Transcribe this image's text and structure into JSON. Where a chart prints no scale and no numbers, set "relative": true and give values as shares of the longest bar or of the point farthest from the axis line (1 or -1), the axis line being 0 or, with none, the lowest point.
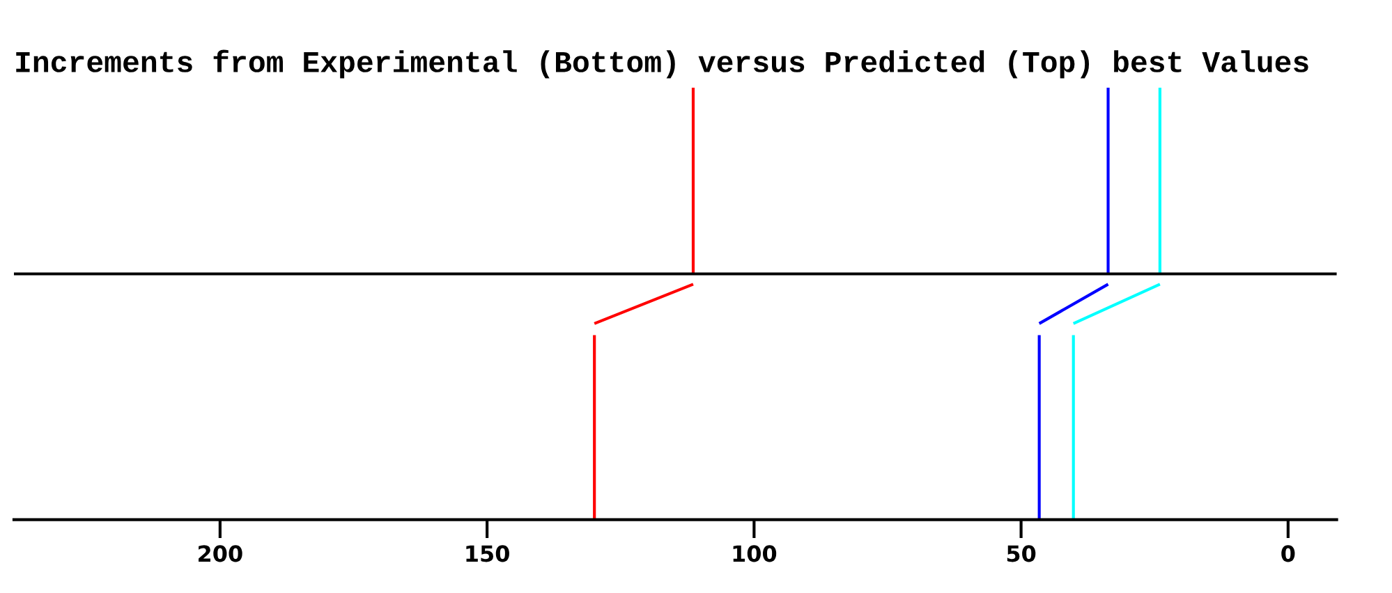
{
  "chart_data": {
    "type": "line",
    "title": "Increments from Experimental (Bottom) versus Predicted (Top) best Values",
    "relative": true,
    "xlim": [
      238.6,
      -9.1
    ],
    "xticks": [
      200,
      150,
      100,
      50,
      0
    ],
    "ref_lines": [
      {
        "axis": "y",
        "value": 0.569,
        "color": "#000000"
      }
    ],
    "series": [
      {
        "color": "#ff0000",
        "x": [
          129.9,
          129.9,
          null,
          129.9,
          111.4,
          null,
          111.4,
          111.4
        ],
        "values": [
          0,
          0.427,
          null,
          0.454,
          0.545,
          null,
          0.569,
          1
        ]
      },
      {
        "color": "#0000ff",
        "x": [
          46.6,
          46.6,
          null,
          46.6,
          33.7,
          null,
          33.7,
          33.7
        ],
        "values": [
          0,
          0.427,
          null,
          0.454,
          0.545,
          null,
          0.569,
          1
        ]
      },
      {
        "color": "#00ffff",
        "x": [
          40.2,
          40.2,
          null,
          40.2,
          24.0,
          null,
          24.0,
          24.0
        ],
        "values": [
          0,
          0.427,
          null,
          0.454,
          0.545,
          null,
          0.569,
          1
        ]
      }
    ]
  }
}
